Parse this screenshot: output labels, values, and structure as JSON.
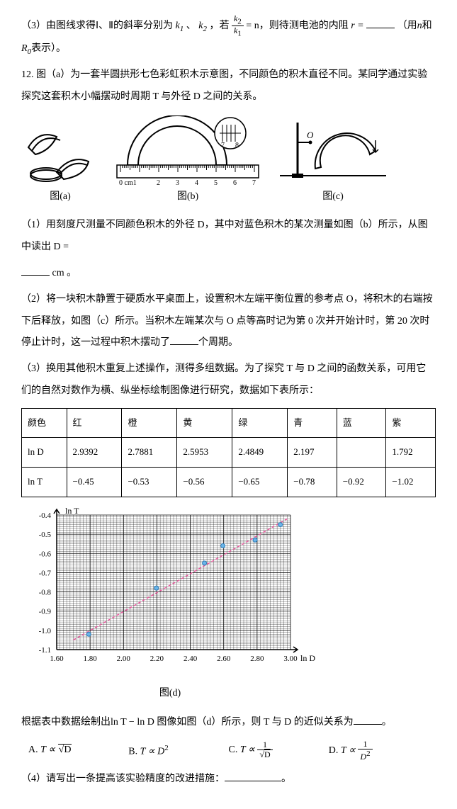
{
  "q11_3": {
    "text1": "（3）由图线求得Ⅰ、Ⅱ的斜率分别为",
    "k1": "k",
    "k1sub": "1",
    "sep": "、",
    "k2": "k",
    "k2sub": "2",
    "text2": "，若",
    "eq": "= n",
    "text3": "，则待测电池的内阻",
    "r": "r =",
    "text4": "（用",
    "n": "n",
    "text5": "和",
    "R0": "R",
    "R0sub": "0",
    "text6": "表示）。"
  },
  "q12_intro": {
    "num": "12.",
    "text": "图（a）为一套半圆拱形七色彩虹积木示意图，不同颜色的积木直径不同。某同学通过实验探究这套积木小幅摆动时周期 T 与外径 D 之间的关系。"
  },
  "fig_labels": {
    "a": "图(a)",
    "b": "图(b)",
    "c": "图(c)",
    "d": "图(d)"
  },
  "ruler": {
    "unit": "0 cm1",
    "marks": [
      "2",
      "3",
      "4",
      "5",
      "6",
      "7"
    ],
    "caliper": [
      "7",
      "8"
    ]
  },
  "figc_O": "O",
  "q12_1": {
    "text1": "（1）用刻度尺测量不同颜色积木的外径 D，其中对蓝色积木的某次测量如图（b）所示，从图中读出 D =",
    "unit": "cm 。"
  },
  "q12_2": {
    "text": "（2）将一块积木静置于硬质水平桌面上，设置积木左端平衡位置的参考点 O，将积木的右端按下后释放，如图（c）所示。当积木左端某次与 O 点等高时记为第 0 次并开始计时，第 20 次时停止计时，这一过程中积木摆动了",
    "text2": "个周期。"
  },
  "q12_3": {
    "text": "（3）换用其他积木重复上述操作，测得多组数据。为了探究 T 与 D 之间的函数关系，可用它们的自然对数作为横、纵坐标绘制图像进行研究，数据如下表所示："
  },
  "table": {
    "headers": [
      "颜色",
      "红",
      "橙",
      "黄",
      "绿",
      "青",
      "蓝",
      "紫"
    ],
    "row1_label": "ln D",
    "row1": [
      "2.9392",
      "2.7881",
      "2.5953",
      "2.4849",
      "2.197",
      "",
      "1.792"
    ],
    "row2_label": "ln T",
    "row2": [
      "−0.45",
      "−0.53",
      "−0.56",
      "−0.65",
      "−0.78",
      "−0.92",
      "−1.02"
    ]
  },
  "chart": {
    "ylabel": "ln T",
    "xlabel": "ln D",
    "yticks": [
      -0.4,
      -0.5,
      -0.6,
      -0.7,
      -0.8,
      -0.9,
      -1.0,
      -1.1
    ],
    "xticks": [
      1.6,
      1.8,
      2.0,
      2.2,
      2.4,
      2.6,
      2.8,
      3.0
    ],
    "xlim": [
      1.6,
      3.0
    ],
    "ylim": [
      -1.1,
      -0.4
    ],
    "grid_minor": 10,
    "points": [
      [
        1.792,
        -1.02
      ],
      [
        2.197,
        -0.78
      ],
      [
        2.4849,
        -0.65
      ],
      [
        2.5953,
        -0.56
      ],
      [
        2.7881,
        -0.53
      ],
      [
        2.9392,
        -0.45
      ]
    ],
    "line": [
      [
        1.7,
        -1.05
      ],
      [
        2.98,
        -0.42
      ]
    ],
    "bg": "#ffffff",
    "grid": "#000000",
    "pt_fill": "#6bb5e8",
    "pt_stroke": "#2a7ab8",
    "line_color": "#e85a9e",
    "pt_r": 3,
    "line_w": 1.5
  },
  "q12_3b": {
    "text1": "根据表中数据绘制出",
    "lnT": "ln T − ln D",
    "text2": "图像如图（d）所示，则 T 与 D 的近似关系为",
    "text3": "。"
  },
  "opts": {
    "A": {
      "l": "A.",
      "t": "T ∝",
      "radicand": "D"
    },
    "B": {
      "l": "B.",
      "t": "T ∝ D",
      "sup": "2"
    },
    "C": {
      "l": "C.",
      "t": "T ∝",
      "num": "1",
      "radicand": "D"
    },
    "D": {
      "l": "D.",
      "t": "T ∝",
      "num": "1",
      "den": "D",
      "sup": "2"
    }
  },
  "q12_4": {
    "text": "（4）请写出一条提高该实验精度的改进措施：",
    "text2": "。"
  }
}
